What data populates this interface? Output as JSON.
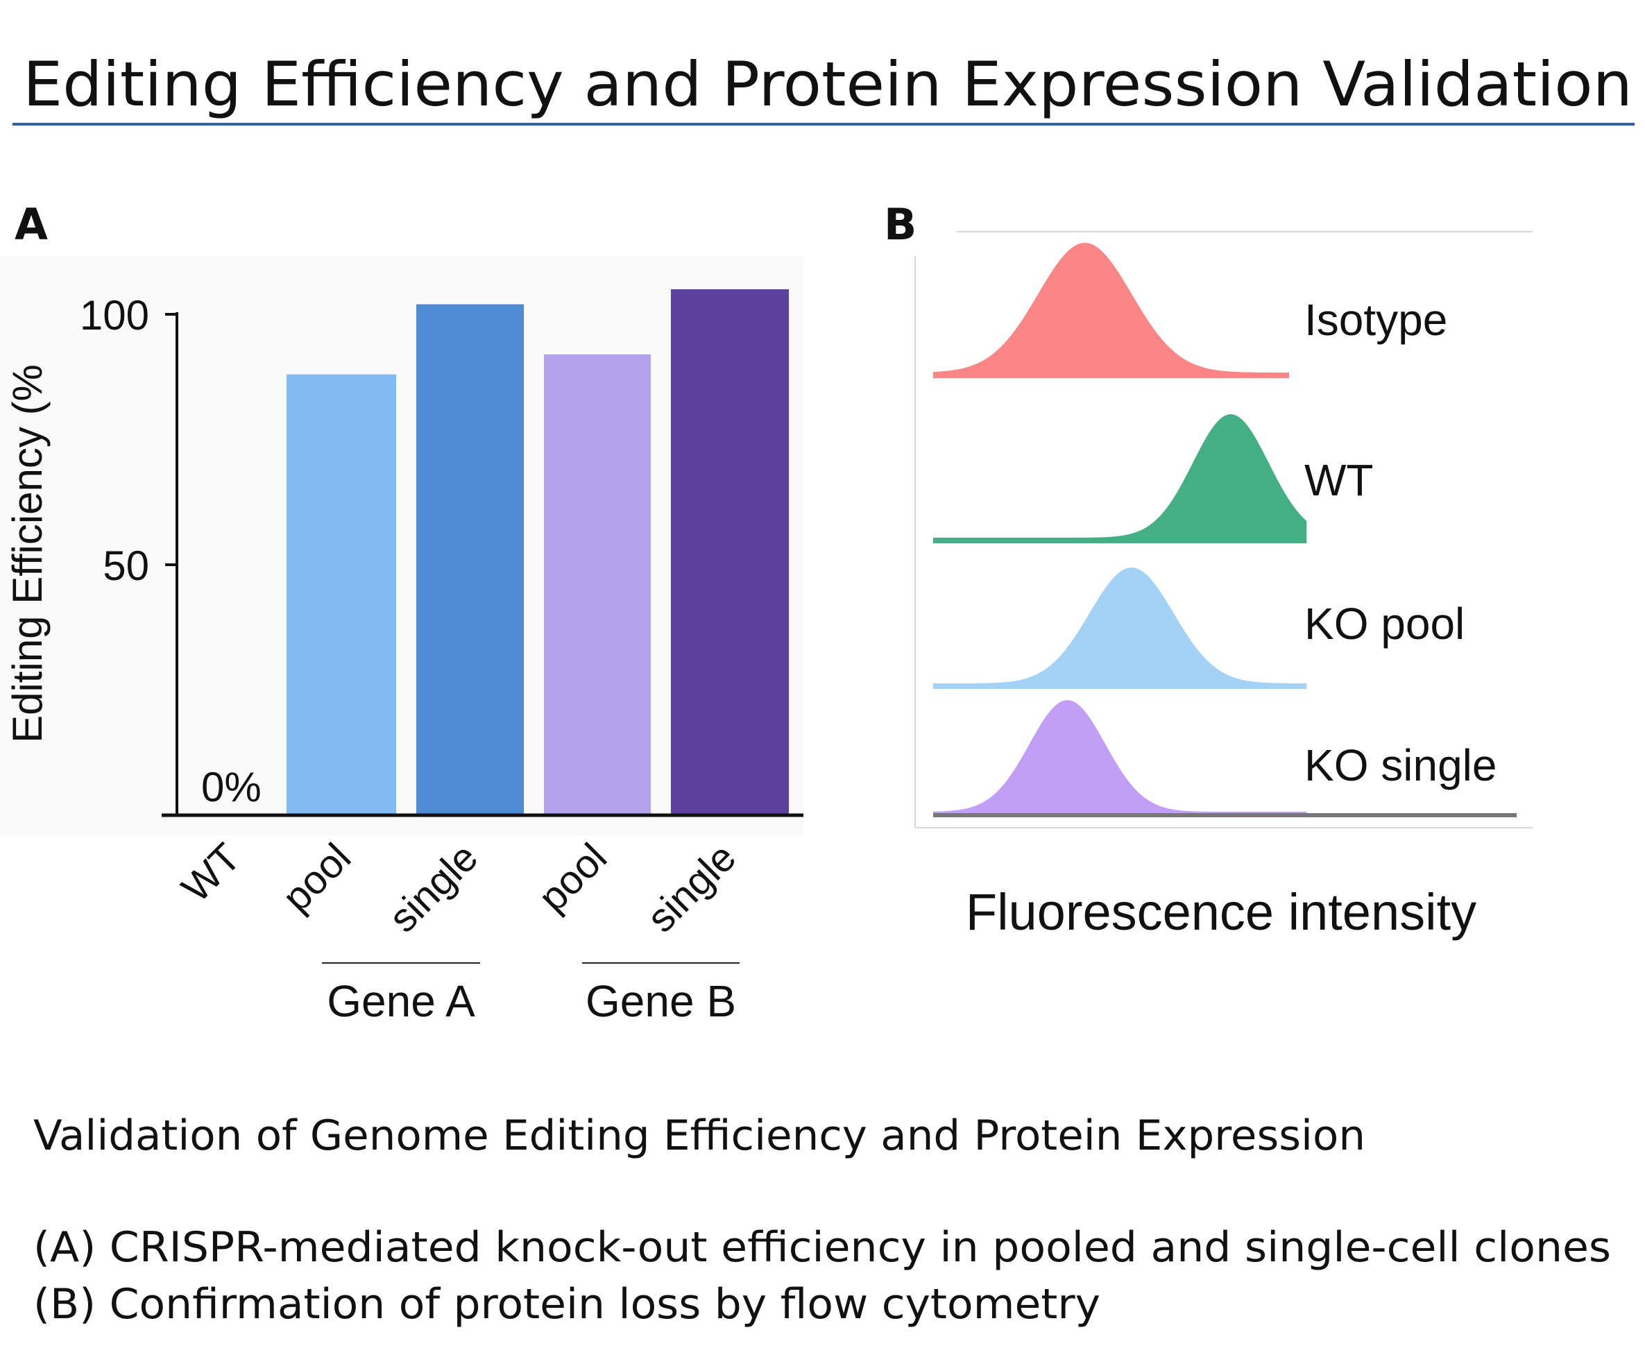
{
  "title": "Editing Efficiency and Protein Expression Validation",
  "caption": {
    "heading": "Validation of Genome Editing Efficiency and Protein Expression",
    "line_a": "(A) CRISPR-mediated knock-out efficiency in pooled and single-cell clones",
    "line_b": "(B) Confirmation of protein loss by flow cytometry"
  },
  "chart_data": [
    {
      "panel": "A",
      "type": "bar",
      "ylabel": "Editing Efficiency (%",
      "xlabel": "",
      "ylim": [
        0,
        100
      ],
      "yticks": [
        "100",
        "50"
      ],
      "ytick_values": [
        100,
        50
      ],
      "categories": [
        "WT",
        "pool",
        "single",
        "pool",
        "single"
      ],
      "values": [
        0,
        88,
        102,
        92,
        105
      ],
      "colors": [
        "#ffffff",
        "#82bbf3",
        "#4f8bd4",
        "#b4a3ec",
        "#5c40a0"
      ],
      "annotation": "0%",
      "groups": [
        {
          "label": "Gene A",
          "members": [
            1,
            2
          ]
        },
        {
          "label": "Gene B",
          "members": [
            3,
            4
          ]
        }
      ]
    },
    {
      "panel": "B",
      "type": "area",
      "xlabel": "Fluorescence intensity",
      "series": [
        {
          "name": "Isotype",
          "peak": 0.26,
          "spread": 0.08,
          "color": "#f98585"
        },
        {
          "name": "WT",
          "peak": 0.51,
          "spread": 0.065,
          "color": "#44ae84"
        },
        {
          "name": "KO pool",
          "peak": 0.34,
          "spread": 0.072,
          "color": "#a4d2f6"
        },
        {
          "name": "KO single",
          "peak": 0.23,
          "spread": 0.065,
          "color": "#c29ff7"
        }
      ]
    }
  ],
  "accent": "#2f5fb3"
}
